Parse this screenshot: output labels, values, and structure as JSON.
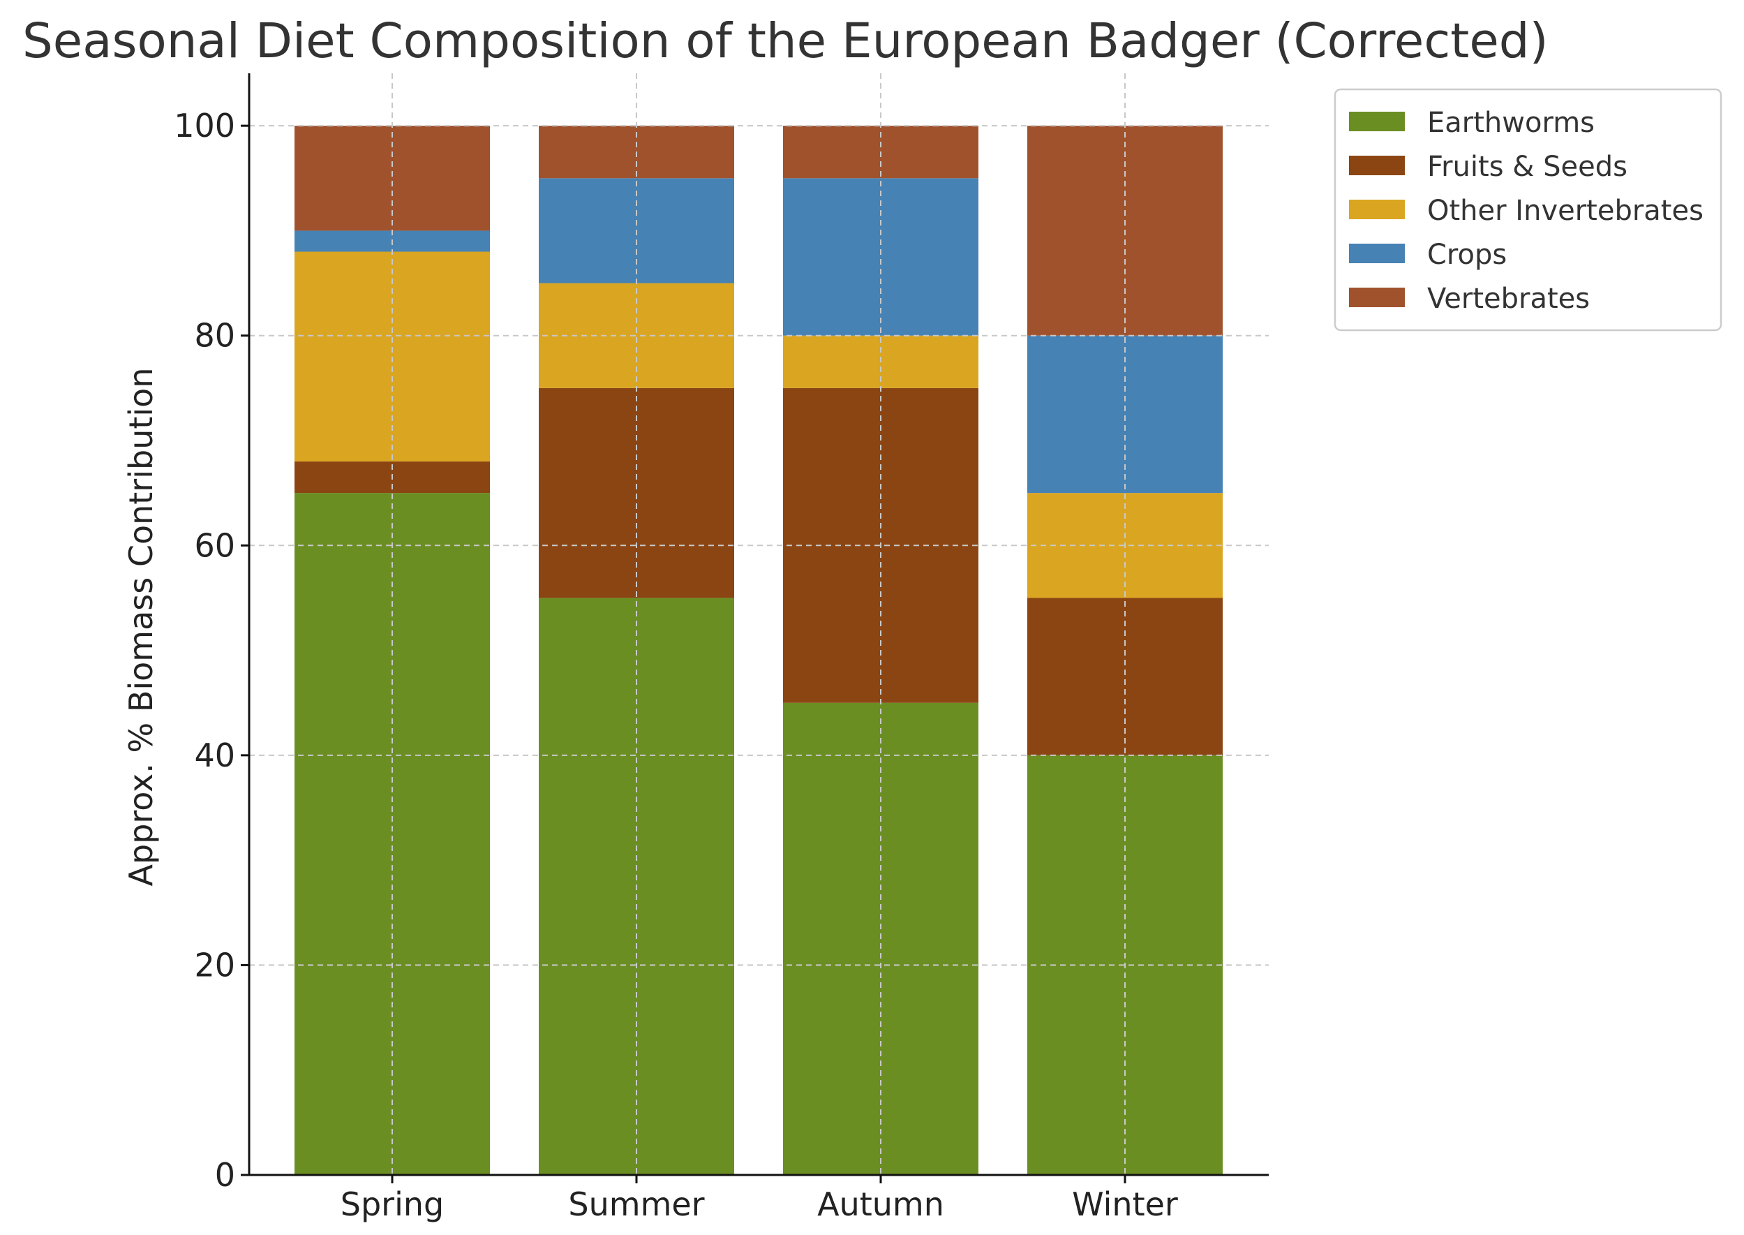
{
  "chart_data": {
    "type": "bar",
    "stacked": true,
    "title": "Seasonal Diet Composition of the European Badger (Corrected)",
    "xlabel": "",
    "ylabel": "Approx. % Biomass Contribution",
    "categories": [
      "Spring",
      "Summer",
      "Autumn",
      "Winter"
    ],
    "ylim": [
      0,
      105
    ],
    "yticks": [
      0,
      20,
      40,
      60,
      80,
      100
    ],
    "grid": true,
    "legend_position": "upper right outside",
    "series": [
      {
        "name": "Earthworms",
        "color": "#6b8e23",
        "values": [
          65,
          55,
          45,
          40
        ]
      },
      {
        "name": "Fruits & Seeds",
        "color": "#8b4513",
        "values": [
          3,
          20,
          30,
          15
        ]
      },
      {
        "name": "Other Invertebrates",
        "color": "#daa520",
        "values": [
          20,
          10,
          5,
          10
        ]
      },
      {
        "name": "Crops",
        "color": "#4682b4",
        "values": [
          2,
          10,
          15,
          15
        ]
      },
      {
        "name": "Vertebrates",
        "color": "#a0522d",
        "values": [
          10,
          5,
          5,
          20
        ]
      }
    ]
  }
}
